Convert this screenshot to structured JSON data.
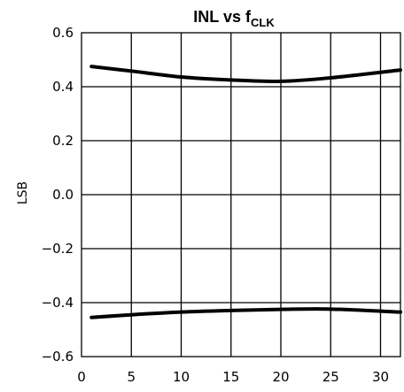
{
  "chart_data": {
    "type": "line",
    "title": {
      "main": "INL vs f",
      "subscript": "CLK"
    },
    "xlabel": "",
    "ylabel": "LSB",
    "xlim": [
      0,
      32
    ],
    "ylim": [
      -0.6,
      0.6
    ],
    "x_ticks": [
      0,
      5,
      10,
      15,
      20,
      25,
      30
    ],
    "x_tick_labels": [
      "0",
      "5",
      "10",
      "15",
      "20",
      "25",
      "30"
    ],
    "y_ticks": [
      0.6,
      0.4,
      0.2,
      0.0,
      -0.2,
      -0.4,
      -0.6
    ],
    "y_tick_labels": [
      "0.6",
      "0.4",
      "0.2",
      "0.0",
      "−0.2",
      "−0.4",
      "−0.6"
    ],
    "grid": true,
    "line_color": "#000000",
    "series": [
      {
        "x": [
          1,
          5,
          10,
          15,
          20,
          25,
          32
        ],
        "y": [
          0.475,
          0.458,
          0.436,
          0.425,
          0.42,
          0.433,
          0.462
        ]
      },
      {
        "x": [
          1,
          5,
          10,
          15,
          20,
          25,
          32
        ],
        "y": [
          -0.455,
          -0.445,
          -0.435,
          -0.429,
          -0.425,
          -0.424,
          -0.435
        ]
      }
    ]
  }
}
